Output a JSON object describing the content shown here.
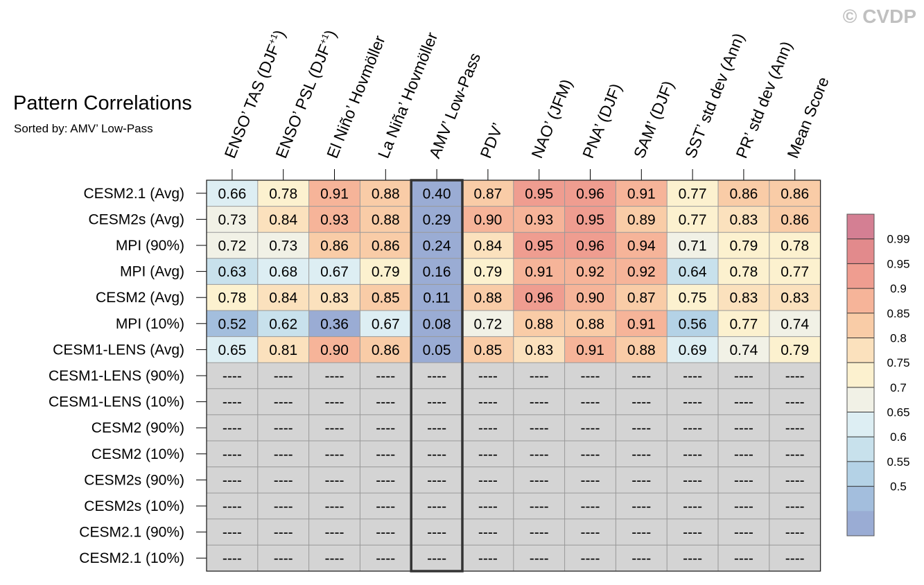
{
  "watermark": "© CVDP",
  "chart_data": {
    "type": "heatmap",
    "title": "Pattern Correlations",
    "subtitle": "Sorted by: AMV’ Low-Pass",
    "columns": [
      {
        "pre": "ENSO’ TAS (DJF",
        "sup": "+1",
        "post": ")"
      },
      {
        "pre": "ENSO’ PSL (DJF",
        "sup": "+1",
        "post": ")"
      },
      {
        "pre": "El Niño’ Hovmöller",
        "sup": "",
        "post": ""
      },
      {
        "pre": "La Niña’ Hovmöller",
        "sup": "",
        "post": ""
      },
      {
        "pre": "AMV’ Low-Pass",
        "sup": "",
        "post": ""
      },
      {
        "pre": "PDV’",
        "sup": "",
        "post": ""
      },
      {
        "pre": "NAO’ (JFM)",
        "sup": "",
        "post": ""
      },
      {
        "pre": "PNA’ (DJF)",
        "sup": "",
        "post": ""
      },
      {
        "pre": "SAM’ (DJF)",
        "sup": "",
        "post": ""
      },
      {
        "pre": "SST’ std dev (Ann)",
        "sup": "",
        "post": ""
      },
      {
        "pre": "PR’ std dev (Ann)",
        "sup": "",
        "post": ""
      },
      {
        "pre": "Mean Score",
        "sup": "",
        "post": ""
      }
    ],
    "rows": [
      {
        "name": "CESM2.1 (Avg)",
        "values": [
          "0.66",
          "0.78",
          "0.91",
          "0.88",
          "0.40",
          "0.87",
          "0.95",
          "0.96",
          "0.91",
          "0.77",
          "0.86",
          "0.86"
        ]
      },
      {
        "name": "CESM2s (Avg)",
        "values": [
          "0.73",
          "0.84",
          "0.93",
          "0.88",
          "0.29",
          "0.90",
          "0.93",
          "0.95",
          "0.89",
          "0.77",
          "0.83",
          "0.86"
        ]
      },
      {
        "name": "MPI (90%)",
        "values": [
          "0.72",
          "0.73",
          "0.86",
          "0.86",
          "0.24",
          "0.84",
          "0.95",
          "0.96",
          "0.94",
          "0.71",
          "0.79",
          "0.78"
        ]
      },
      {
        "name": "MPI (Avg)",
        "values": [
          "0.63",
          "0.68",
          "0.67",
          "0.79",
          "0.16",
          "0.79",
          "0.91",
          "0.92",
          "0.92",
          "0.64",
          "0.78",
          "0.77"
        ]
      },
      {
        "name": "CESM2 (Avg)",
        "values": [
          "0.78",
          "0.84",
          "0.83",
          "0.85",
          "0.11",
          "0.88",
          "0.96",
          "0.90",
          "0.87",
          "0.75",
          "0.83",
          "0.83"
        ]
      },
      {
        "name": "MPI (10%)",
        "values": [
          "0.52",
          "0.62",
          "0.36",
          "0.67",
          "0.08",
          "0.72",
          "0.88",
          "0.88",
          "0.91",
          "0.56",
          "0.77",
          "0.74"
        ]
      },
      {
        "name": "CESM1-LENS (Avg)",
        "values": [
          "0.65",
          "0.81",
          "0.90",
          "0.86",
          "0.05",
          "0.85",
          "0.83",
          "0.91",
          "0.88",
          "0.69",
          "0.74",
          "0.79"
        ]
      },
      {
        "name": "CESM1-LENS (90%)",
        "values": [
          "----",
          "----",
          "----",
          "----",
          "----",
          "----",
          "----",
          "----",
          "----",
          "----",
          "----",
          "----"
        ]
      },
      {
        "name": "CESM1-LENS (10%)",
        "values": [
          "----",
          "----",
          "----",
          "----",
          "----",
          "----",
          "----",
          "----",
          "----",
          "----",
          "----",
          "----"
        ]
      },
      {
        "name": "CESM2 (90%)",
        "values": [
          "----",
          "----",
          "----",
          "----",
          "----",
          "----",
          "----",
          "----",
          "----",
          "----",
          "----",
          "----"
        ]
      },
      {
        "name": "CESM2 (10%)",
        "values": [
          "----",
          "----",
          "----",
          "----",
          "----",
          "----",
          "----",
          "----",
          "----",
          "----",
          "----",
          "----"
        ]
      },
      {
        "name": "CESM2s (90%)",
        "values": [
          "----",
          "----",
          "----",
          "----",
          "----",
          "----",
          "----",
          "----",
          "----",
          "----",
          "----",
          "----"
        ]
      },
      {
        "name": "CESM2s (10%)",
        "values": [
          "----",
          "----",
          "----",
          "----",
          "----",
          "----",
          "----",
          "----",
          "----",
          "----",
          "----",
          "----"
        ]
      },
      {
        "name": "CESM2.1 (90%)",
        "values": [
          "----",
          "----",
          "----",
          "----",
          "----",
          "----",
          "----",
          "----",
          "----",
          "----",
          "----",
          "----"
        ]
      },
      {
        "name": "CESM2.1 (10%)",
        "values": [
          "----",
          "----",
          "----",
          "----",
          "----",
          "----",
          "----",
          "----",
          "----",
          "----",
          "----",
          "----"
        ]
      }
    ],
    "highlight_column": "AMV’ Low-Pass",
    "missing_value": "----",
    "missing_color": "#d4d4d4",
    "colorbar": {
      "labels": [
        "0.99",
        "0.95",
        "0.9",
        "0.85",
        "0.8",
        "0.75",
        "0.7",
        "0.65",
        "0.6",
        "0.55",
        "0.5"
      ],
      "colors": [
        "#d47f93",
        "#e28a8c",
        "#ef9d90",
        "#f6b499",
        "#f9cca7",
        "#fbe1bd",
        "#fcf1cf",
        "#f1f1e6",
        "#ddeef3",
        "#c8e1ec",
        "#b4d2e6",
        "#a3bedd",
        "#9aacd4"
      ]
    },
    "color_thresholds": [
      0.5,
      0.55,
      0.6,
      0.65,
      0.7,
      0.75,
      0.8,
      0.85,
      0.9,
      0.95,
      0.99
    ]
  }
}
